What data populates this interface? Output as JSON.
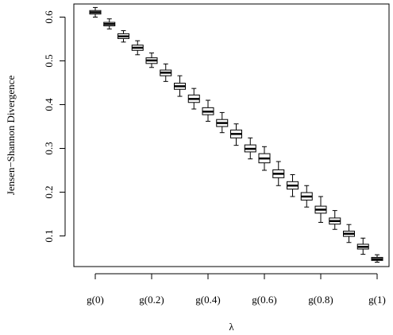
{
  "chart_data": {
    "type": "boxplot",
    "xlabel": "λ",
    "ylabel": "Jensen−Shannon Divergence",
    "ylim": [
      0.03,
      0.63
    ],
    "y_ticks": [
      0.1,
      0.2,
      0.3,
      0.4,
      0.5,
      0.6
    ],
    "x_tick_labels": [
      "g(0)",
      "g(0.2)",
      "g(0.4)",
      "g(0.6)",
      "g(0.8)",
      "g(1)"
    ],
    "x_tick_positions": [
      0,
      0.2,
      0.4,
      0.6,
      0.8,
      1.0
    ],
    "grid": false,
    "boxes": [
      {
        "x": 0.0,
        "min": 0.6,
        "q1": 0.607,
        "median": 0.611,
        "q3": 0.615,
        "max": 0.622
      },
      {
        "x": 0.05,
        "min": 0.573,
        "q1": 0.58,
        "median": 0.584,
        "q3": 0.588,
        "max": 0.596
      },
      {
        "x": 0.1,
        "min": 0.543,
        "q1": 0.551,
        "median": 0.556,
        "q3": 0.562,
        "max": 0.569
      },
      {
        "x": 0.15,
        "min": 0.514,
        "q1": 0.524,
        "median": 0.53,
        "q3": 0.536,
        "max": 0.546
      },
      {
        "x": 0.2,
        "min": 0.485,
        "q1": 0.494,
        "median": 0.501,
        "q3": 0.507,
        "max": 0.518
      },
      {
        "x": 0.25,
        "min": 0.453,
        "q1": 0.466,
        "median": 0.473,
        "q3": 0.479,
        "max": 0.493
      },
      {
        "x": 0.3,
        "min": 0.419,
        "q1": 0.435,
        "median": 0.442,
        "q3": 0.449,
        "max": 0.466
      },
      {
        "x": 0.35,
        "min": 0.39,
        "q1": 0.405,
        "median": 0.413,
        "q3": 0.422,
        "max": 0.437
      },
      {
        "x": 0.4,
        "min": 0.362,
        "q1": 0.377,
        "median": 0.384,
        "q3": 0.393,
        "max": 0.41
      },
      {
        "x": 0.45,
        "min": 0.336,
        "q1": 0.35,
        "median": 0.358,
        "q3": 0.366,
        "max": 0.382
      },
      {
        "x": 0.5,
        "min": 0.307,
        "q1": 0.324,
        "median": 0.333,
        "q3": 0.342,
        "max": 0.356
      },
      {
        "x": 0.55,
        "min": 0.276,
        "q1": 0.292,
        "median": 0.299,
        "q3": 0.308,
        "max": 0.324
      },
      {
        "x": 0.6,
        "min": 0.25,
        "q1": 0.267,
        "median": 0.277,
        "q3": 0.288,
        "max": 0.304
      },
      {
        "x": 0.65,
        "min": 0.215,
        "q1": 0.233,
        "median": 0.242,
        "q3": 0.251,
        "max": 0.27
      },
      {
        "x": 0.7,
        "min": 0.19,
        "q1": 0.207,
        "median": 0.215,
        "q3": 0.224,
        "max": 0.24
      },
      {
        "x": 0.75,
        "min": 0.166,
        "q1": 0.182,
        "median": 0.19,
        "q3": 0.199,
        "max": 0.215
      },
      {
        "x": 0.8,
        "min": 0.131,
        "q1": 0.152,
        "median": 0.16,
        "q3": 0.168,
        "max": 0.19
      },
      {
        "x": 0.85,
        "min": 0.115,
        "q1": 0.127,
        "median": 0.134,
        "q3": 0.141,
        "max": 0.158
      },
      {
        "x": 0.9,
        "min": 0.085,
        "q1": 0.099,
        "median": 0.105,
        "q3": 0.111,
        "max": 0.126
      },
      {
        "x": 0.95,
        "min": 0.058,
        "q1": 0.07,
        "median": 0.075,
        "q3": 0.081,
        "max": 0.095
      },
      {
        "x": 1.0,
        "min": 0.04,
        "q1": 0.044,
        "median": 0.047,
        "q3": 0.051,
        "max": 0.057
      }
    ]
  }
}
